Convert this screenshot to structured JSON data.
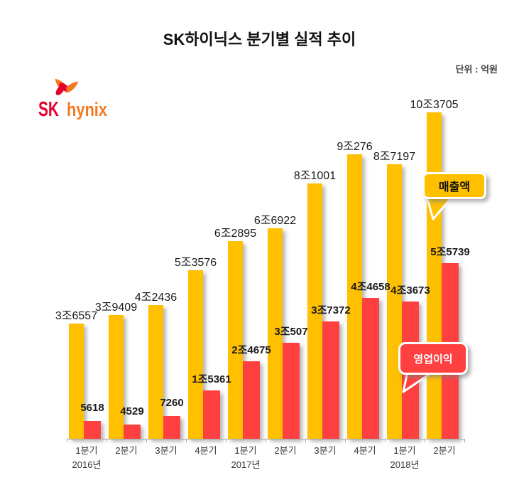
{
  "title": "SK하이닉스 분기별 실적 추이",
  "unit_label": "단위 : 억원",
  "logo": {
    "sk": "SK",
    "hynix": "hynix",
    "sk_color": "#E6002D",
    "hynix_color": "#F4791F"
  },
  "legend": {
    "revenue_label": "매출액",
    "profit_label": "영업이익"
  },
  "colors": {
    "revenue": "#FFC000",
    "profit": "#FF4040",
    "axis": "#A6A6A6"
  },
  "chart_data": {
    "type": "bar",
    "title": "SK하이닉스 분기별 실적 추이",
    "unit": "억원",
    "legend_position": "callouts-right",
    "grid": false,
    "categories": [
      "1분기",
      "2분기",
      "3분기",
      "4분기",
      "1분기",
      "2분기",
      "3분기",
      "4분기",
      "1분기",
      "2분기"
    ],
    "year_markers": [
      {
        "index": 0,
        "label": "2016년"
      },
      {
        "index": 4,
        "label": "2017년"
      },
      {
        "index": 8,
        "label": "2018년"
      }
    ],
    "series": [
      {
        "name": "매출액",
        "values": [
          36557,
          39409,
          42436,
          53576,
          62895,
          66922,
          81001,
          90276,
          87197,
          103705
        ],
        "labels": [
          "3조6557",
          "3조9409",
          "4조2436",
          "5조3576",
          "6조2895",
          "6조6922",
          "8조1001",
          "9조276",
          "8조7197",
          "10조3705"
        ]
      },
      {
        "name": "영업이익",
        "values": [
          5618,
          4529,
          7260,
          15361,
          24675,
          30507,
          37372,
          44658,
          43673,
          55739
        ],
        "labels": [
          "5618",
          "4529",
          "7260",
          "1조5361",
          "2조4675",
          "3조507",
          "3조7372",
          "4조4658",
          "4조3673",
          "5조5739"
        ]
      }
    ],
    "ylim": [
      0,
      103705
    ]
  }
}
